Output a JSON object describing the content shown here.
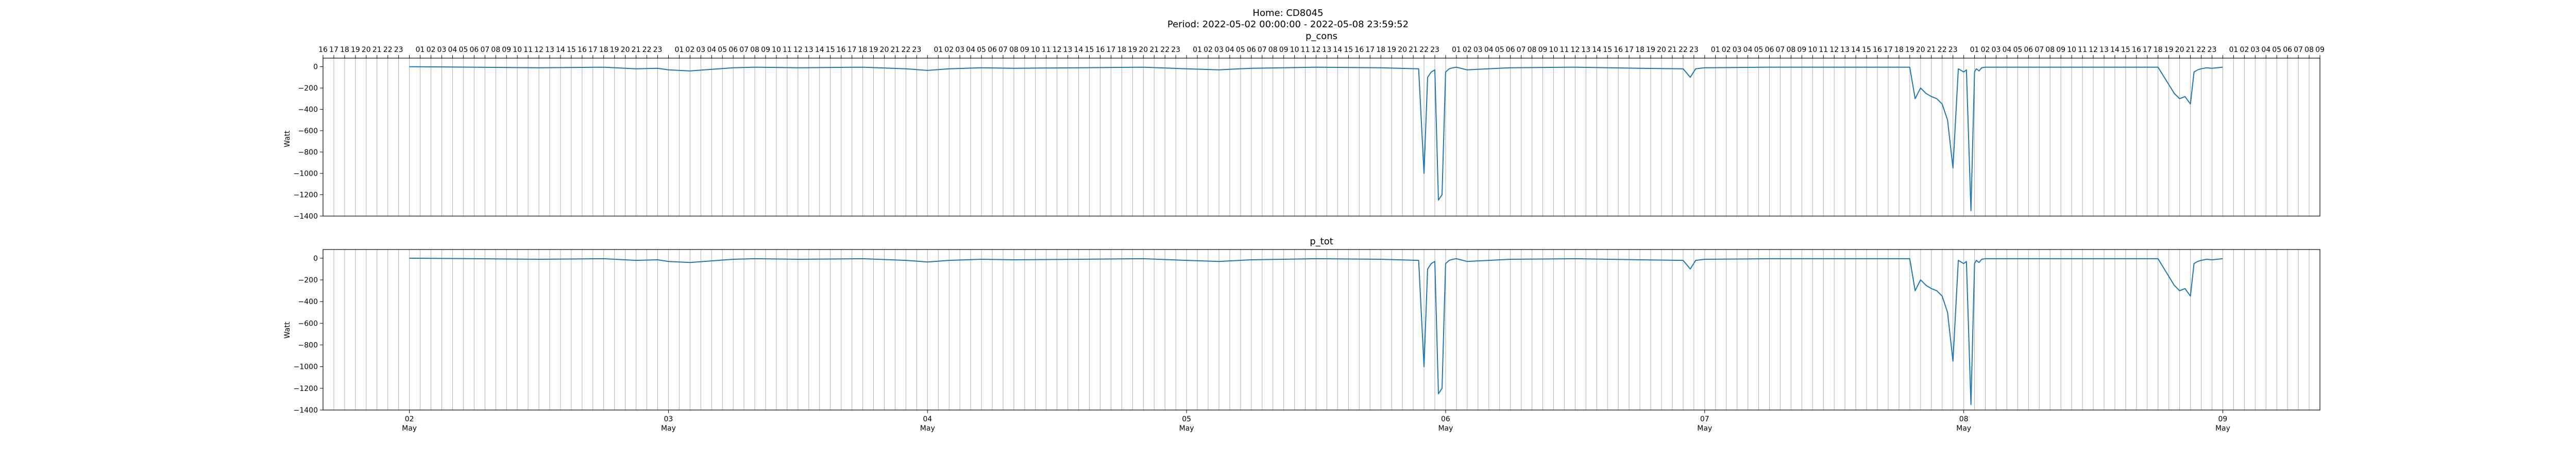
{
  "figure": {
    "title_line1": "Home: CD8045",
    "title_line2": "Period: 2022-05-02 00:00:00 - 2022-05-08 23:59:52"
  },
  "colors": {
    "series": "#1f77b4",
    "gridline": "#b0b0b0",
    "axis": "#000000"
  },
  "chart_data": [
    {
      "type": "line",
      "title": "p_cons",
      "ylabel": "Watt",
      "xlim": [
        "2022-05-01 16:00",
        "2022-05-09 09:00"
      ],
      "ylim": [
        -1400,
        80
      ],
      "yticks": [
        0,
        -200,
        -400,
        -600,
        -800,
        -1000,
        -1200,
        -1400
      ],
      "top_hour_ticks": true,
      "x_date_ticks": [],
      "vertical_hour_grid": true,
      "series": [
        {
          "x": [
            "2022-05-02 00:00",
            "2022-05-02 06:00",
            "2022-05-02 12:00",
            "2022-05-02 18:00",
            "2022-05-02 21:00",
            "2022-05-02 23:00",
            "2022-05-03 00:00",
            "2022-05-03 02:00",
            "2022-05-03 04:00",
            "2022-05-03 06:00",
            "2022-05-03 08:00",
            "2022-05-03 12:00",
            "2022-05-03 18:00",
            "2022-05-03 22:00",
            "2022-05-04 00:00",
            "2022-05-04 02:00",
            "2022-05-04 05:00",
            "2022-05-04 08:00",
            "2022-05-04 14:00",
            "2022-05-04 20:00",
            "2022-05-05 00:00",
            "2022-05-05 03:00",
            "2022-05-05 06:00",
            "2022-05-05 12:00",
            "2022-05-05 18:00",
            "2022-05-05 21:30",
            "2022-05-05 22:00",
            "2022-05-05 22:20",
            "2022-05-05 22:40",
            "2022-05-05 23:00",
            "2022-05-05 23:20",
            "2022-05-05 23:40",
            "2022-05-06 00:00",
            "2022-05-06 00:20",
            "2022-05-06 00:40",
            "2022-05-06 01:00",
            "2022-05-06 02:00",
            "2022-05-06 06:00",
            "2022-05-06 12:00",
            "2022-05-06 18:00",
            "2022-05-06 22:00",
            "2022-05-06 22:40",
            "2022-05-06 23:10",
            "2022-05-07 00:00",
            "2022-05-07 06:00",
            "2022-05-07 12:00",
            "2022-05-07 19:00",
            "2022-05-07 19:30",
            "2022-05-07 20:00",
            "2022-05-07 20:30",
            "2022-05-07 21:00",
            "2022-05-07 21:30",
            "2022-05-07 22:00",
            "2022-05-07 22:30",
            "2022-05-07 23:00",
            "2022-05-07 23:30",
            "2022-05-08 00:00",
            "2022-05-08 00:15",
            "2022-05-08 00:40",
            "2022-05-08 01:00",
            "2022-05-08 01:10",
            "2022-05-08 01:25",
            "2022-05-08 01:40",
            "2022-05-08 02:00",
            "2022-05-08 06:00",
            "2022-05-08 12:00",
            "2022-05-08 18:00",
            "2022-05-08 19:30",
            "2022-05-08 20:00",
            "2022-05-08 20:30",
            "2022-05-08 21:00",
            "2022-05-08 21:20",
            "2022-05-08 21:40",
            "2022-05-08 22:00",
            "2022-05-08 22:30",
            "2022-05-08 23:00",
            "2022-05-08 23:59"
          ],
          "y": [
            0,
            -5,
            -10,
            -5,
            -20,
            -15,
            -30,
            -40,
            -25,
            -10,
            -5,
            -10,
            -5,
            -20,
            -35,
            -20,
            -10,
            -15,
            -10,
            -5,
            -20,
            -30,
            -15,
            -5,
            -10,
            -20,
            -1000,
            -100,
            -50,
            -30,
            -1250,
            -1200,
            -50,
            -20,
            -10,
            -5,
            -30,
            -10,
            -5,
            -15,
            -20,
            -100,
            -20,
            -10,
            -5,
            -5,
            -5,
            -300,
            -200,
            -250,
            -280,
            -300,
            -350,
            -500,
            -950,
            -20,
            -50,
            -30,
            -1350,
            -50,
            -20,
            -40,
            -10,
            -5,
            -5,
            -5,
            -5,
            -250,
            -300,
            -280,
            -350,
            -50,
            -30,
            -20,
            -10,
            -15,
            -5
          ]
        }
      ]
    },
    {
      "type": "line",
      "title": "p_tot",
      "ylabel": "Watt",
      "xlim": [
        "2022-05-01 16:00",
        "2022-05-09 09:00"
      ],
      "ylim": [
        -1400,
        80
      ],
      "yticks": [
        0,
        -200,
        -400,
        -600,
        -800,
        -1000,
        -1200,
        -1400
      ],
      "top_hour_ticks": false,
      "x_date_ticks": [
        {
          "x": "2022-05-02 00:00",
          "line1": "02",
          "line2": "May"
        },
        {
          "x": "2022-05-03 00:00",
          "line1": "03",
          "line2": "May"
        },
        {
          "x": "2022-05-04 00:00",
          "line1": "04",
          "line2": "May"
        },
        {
          "x": "2022-05-05 00:00",
          "line1": "05",
          "line2": "May"
        },
        {
          "x": "2022-05-06 00:00",
          "line1": "06",
          "line2": "May"
        },
        {
          "x": "2022-05-07 00:00",
          "line1": "07",
          "line2": "May"
        },
        {
          "x": "2022-05-08 00:00",
          "line1": "08",
          "line2": "May"
        },
        {
          "x": "2022-05-09 00:00",
          "line1": "09",
          "line2": "May"
        }
      ],
      "vertical_hour_grid": true,
      "series": [
        {
          "x": [
            "2022-05-02 00:00",
            "2022-05-02 06:00",
            "2022-05-02 12:00",
            "2022-05-02 18:00",
            "2022-05-02 21:00",
            "2022-05-02 23:00",
            "2022-05-03 00:00",
            "2022-05-03 02:00",
            "2022-05-03 04:00",
            "2022-05-03 06:00",
            "2022-05-03 08:00",
            "2022-05-03 12:00",
            "2022-05-03 18:00",
            "2022-05-03 22:00",
            "2022-05-04 00:00",
            "2022-05-04 02:00",
            "2022-05-04 05:00",
            "2022-05-04 08:00",
            "2022-05-04 14:00",
            "2022-05-04 20:00",
            "2022-05-05 00:00",
            "2022-05-05 03:00",
            "2022-05-05 06:00",
            "2022-05-05 12:00",
            "2022-05-05 18:00",
            "2022-05-05 21:30",
            "2022-05-05 22:00",
            "2022-05-05 22:20",
            "2022-05-05 22:40",
            "2022-05-05 23:00",
            "2022-05-05 23:20",
            "2022-05-05 23:40",
            "2022-05-06 00:00",
            "2022-05-06 00:20",
            "2022-05-06 00:40",
            "2022-05-06 01:00",
            "2022-05-06 02:00",
            "2022-05-06 06:00",
            "2022-05-06 12:00",
            "2022-05-06 18:00",
            "2022-05-06 22:00",
            "2022-05-06 22:40",
            "2022-05-06 23:10",
            "2022-05-07 00:00",
            "2022-05-07 06:00",
            "2022-05-07 12:00",
            "2022-05-07 19:00",
            "2022-05-07 19:30",
            "2022-05-07 20:00",
            "2022-05-07 20:30",
            "2022-05-07 21:00",
            "2022-05-07 21:30",
            "2022-05-07 22:00",
            "2022-05-07 22:30",
            "2022-05-07 23:00",
            "2022-05-07 23:30",
            "2022-05-08 00:00",
            "2022-05-08 00:15",
            "2022-05-08 00:40",
            "2022-05-08 01:00",
            "2022-05-08 01:10",
            "2022-05-08 01:25",
            "2022-05-08 01:40",
            "2022-05-08 02:00",
            "2022-05-08 06:00",
            "2022-05-08 12:00",
            "2022-05-08 18:00",
            "2022-05-08 19:30",
            "2022-05-08 20:00",
            "2022-05-08 20:30",
            "2022-05-08 21:00",
            "2022-05-08 21:20",
            "2022-05-08 21:40",
            "2022-05-08 22:00",
            "2022-05-08 22:30",
            "2022-05-08 23:00",
            "2022-05-08 23:59"
          ],
          "y": [
            0,
            -5,
            -10,
            -5,
            -20,
            -15,
            -30,
            -40,
            -25,
            -10,
            -5,
            -10,
            -5,
            -20,
            -35,
            -20,
            -10,
            -15,
            -10,
            -5,
            -20,
            -30,
            -15,
            -5,
            -10,
            -20,
            -1000,
            -100,
            -50,
            -30,
            -1250,
            -1200,
            -50,
            -20,
            -10,
            -5,
            -30,
            -10,
            -5,
            -15,
            -20,
            -100,
            -20,
            -10,
            -5,
            -5,
            -5,
            -300,
            -200,
            -250,
            -280,
            -300,
            -350,
            -500,
            -950,
            -20,
            -50,
            -30,
            -1350,
            -50,
            -20,
            -40,
            -10,
            -5,
            -5,
            -5,
            -5,
            -250,
            -300,
            -280,
            -350,
            -50,
            -30,
            -20,
            -10,
            -15,
            -5
          ]
        }
      ]
    }
  ]
}
